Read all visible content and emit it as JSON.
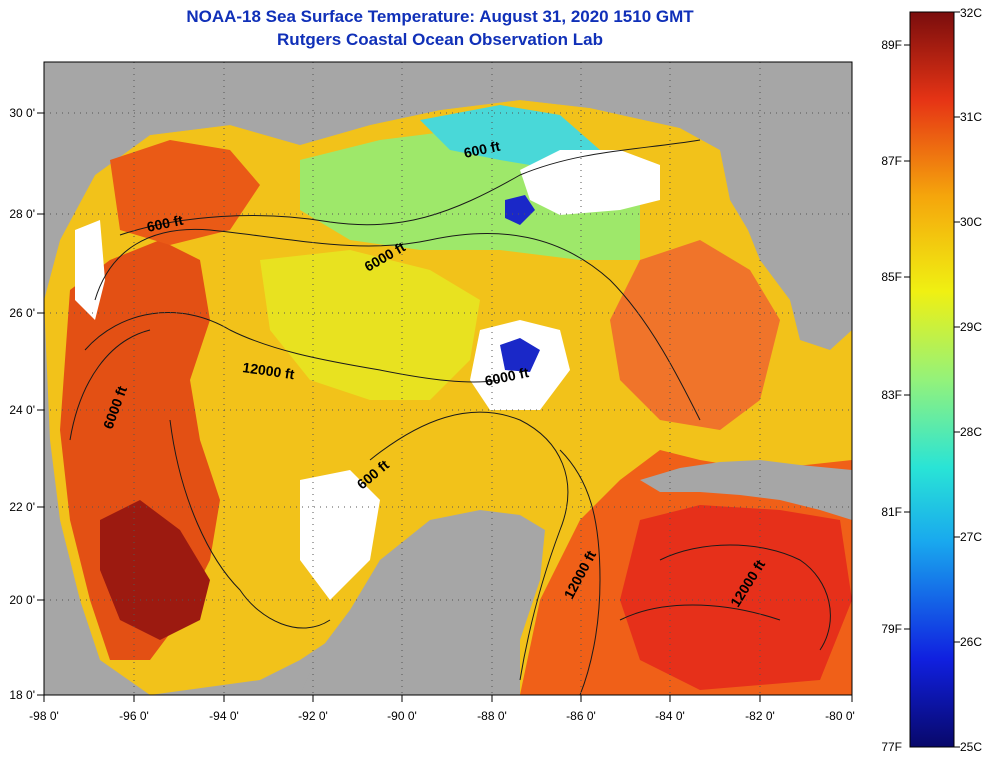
{
  "title": "NOAA-18 Sea Surface Temperature:  August 31, 2020 1510 GMT",
  "subtitle": "Rutgers Coastal Ocean Observation Lab",
  "map": {
    "lon_ticks": [
      "-98 0'",
      "-96 0'",
      "-94 0'",
      "-92 0'",
      "-90 0'",
      "-88 0'",
      "-86 0'",
      "-84 0'",
      "-82 0'",
      "-80 0'"
    ],
    "lat_ticks": [
      "30 0'",
      "28 0'",
      "26 0'",
      "24 0'",
      "22 0'",
      "20 0'",
      "18 0'"
    ],
    "lon_range": [
      -98,
      -80
    ],
    "lat_range": [
      18,
      31
    ],
    "land_color": "#a6a6a6",
    "cloud_color": "#ffffff",
    "contour_labels": [
      "600 ft",
      "600 ft",
      "6000 ft",
      "12000 ft",
      "6000 ft",
      "6000 ft",
      "600 ft",
      "12000 ft",
      "12000 ft"
    ]
  },
  "colorbar": {
    "celsius_labels": [
      "32C",
      "31C",
      "30C",
      "29C",
      "28C",
      "27C",
      "26C",
      "25C"
    ],
    "fahrenheit_labels": [
      "89F",
      "87F",
      "85F",
      "83F",
      "81F",
      "79F",
      "77F"
    ],
    "range_c": [
      25,
      32
    ],
    "colors": [
      "#08086a",
      "#1020e0",
      "#19a9ee",
      "#29e4d6",
      "#94f27a",
      "#f0f012",
      "#f5a50c",
      "#e63415",
      "#7a0d0d"
    ]
  }
}
